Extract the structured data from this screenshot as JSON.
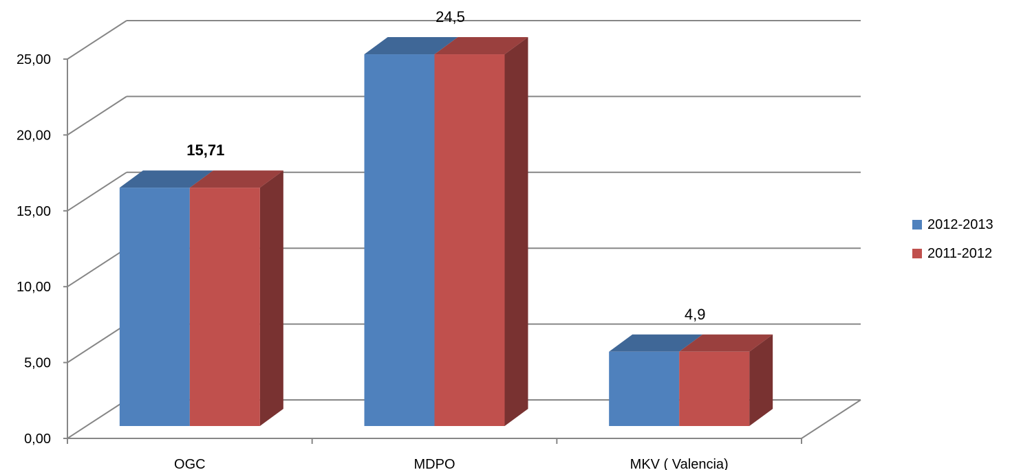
{
  "chart_data": {
    "type": "bar",
    "categories": [
      "OGC",
      "MDPO",
      "MKV ( Valencia)"
    ],
    "series": [
      {
        "name": "2012-2013",
        "values": [
          15.71,
          24.5,
          4.9
        ],
        "color": "#4F81BD"
      },
      {
        "name": "2011-2012",
        "values": [
          15.71,
          24.5,
          4.9
        ],
        "color": "#C0504D"
      }
    ],
    "data_labels": [
      "15,71",
      "24,5",
      "4,9"
    ],
    "ylim": [
      0,
      25
    ],
    "yticks": [
      "0,00",
      "5,00",
      "10,00",
      "15,00",
      "20,00",
      "25,00"
    ],
    "grid": true,
    "legend_position": "right",
    "style": "3d-clustered-column"
  }
}
